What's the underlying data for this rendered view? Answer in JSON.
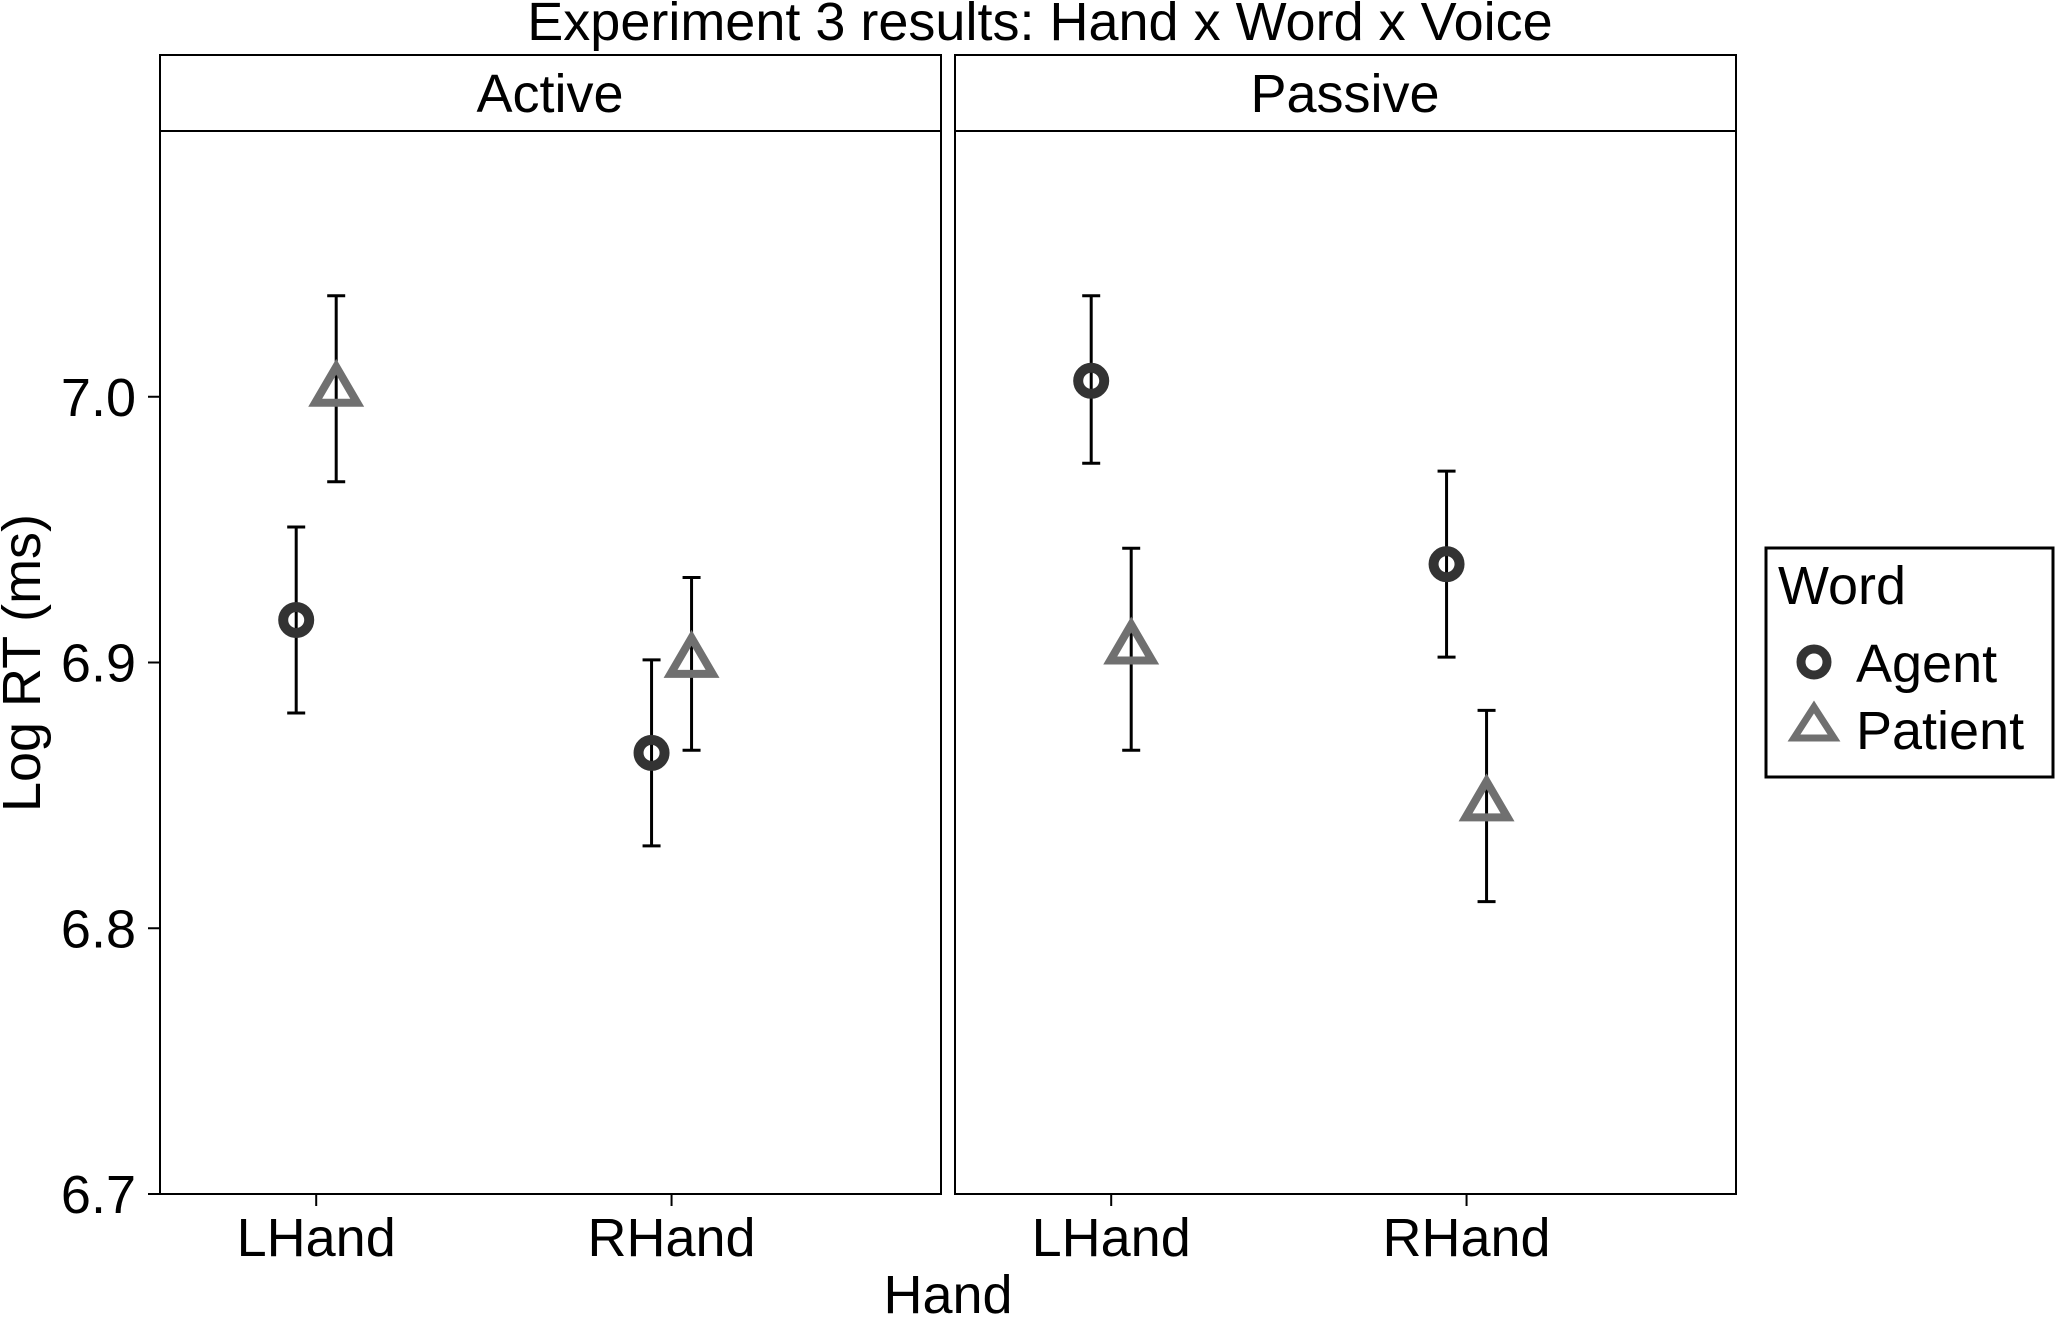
{
  "chart_data": {
    "type": "scatter",
    "title": "Experiment 3 results: Hand x Word x Voice",
    "xlabel": "Hand",
    "ylabel": "Log RT (ms)",
    "ylim": [
      6.7,
      7.1
    ],
    "yticks": [
      "6.7",
      "6.8",
      "6.9",
      "7.0"
    ],
    "ytick_values": [
      6.7,
      6.8,
      6.9,
      7.0
    ],
    "categories": [
      "LHand",
      "RHand"
    ],
    "grid": false,
    "legend": {
      "title": "Word",
      "position": "right"
    },
    "facets": [
      {
        "label": "Active",
        "series": [
          {
            "name": "Agent",
            "shape": "circle",
            "color": "#333333",
            "values": [
              6.916,
              6.866
            ],
            "lower": [
              6.881,
              6.831
            ],
            "upper": [
              6.951,
              6.901
            ]
          },
          {
            "name": "Patient",
            "shape": "triangle",
            "color": "#707070",
            "values": [
              7.003,
              6.901
            ],
            "lower": [
              6.968,
              6.867
            ],
            "upper": [
              7.038,
              6.932
            ]
          }
        ]
      },
      {
        "label": "Passive",
        "series": [
          {
            "name": "Agent",
            "shape": "circle",
            "color": "#333333",
            "values": [
              7.006,
              6.937
            ],
            "lower": [
              6.975,
              6.902
            ],
            "upper": [
              7.038,
              6.972
            ]
          },
          {
            "name": "Patient",
            "shape": "triangle",
            "color": "#707070",
            "values": [
              6.906,
              6.847
            ],
            "lower": [
              6.867,
              6.81
            ],
            "upper": [
              6.943,
              6.882
            ]
          }
        ]
      }
    ]
  }
}
